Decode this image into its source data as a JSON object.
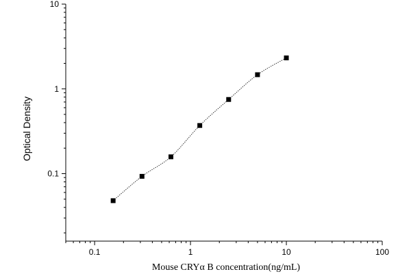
{
  "chart_data": {
    "type": "scatter",
    "xlabel": "Mouse CRYα B concentration(ng/mL)",
    "ylabel": "Optical Density",
    "x_scale": "log",
    "y_scale": "log",
    "xlim": [
      0.05,
      100
    ],
    "ylim": [
      0.016,
      10
    ],
    "x_ticks": [
      0.1,
      1,
      10,
      100
    ],
    "x_tick_labels": [
      "0.1",
      "1",
      "10",
      "100"
    ],
    "y_ticks": [
      0.1,
      1,
      10
    ],
    "y_tick_labels": [
      "0.1",
      "1",
      "10"
    ],
    "grid": false,
    "legend": "none",
    "series": [
      {
        "points": [
          {
            "x": 0.156,
            "y": 0.048
          },
          {
            "x": 0.312,
            "y": 0.093
          },
          {
            "x": 0.625,
            "y": 0.158
          },
          {
            "x": 1.25,
            "y": 0.37
          },
          {
            "x": 2.5,
            "y": 0.75
          },
          {
            "x": 5,
            "y": 1.47
          },
          {
            "x": 10,
            "y": 2.32
          }
        ],
        "marker": "square",
        "color": "#000000",
        "fit_line": "dotted"
      }
    ]
  }
}
